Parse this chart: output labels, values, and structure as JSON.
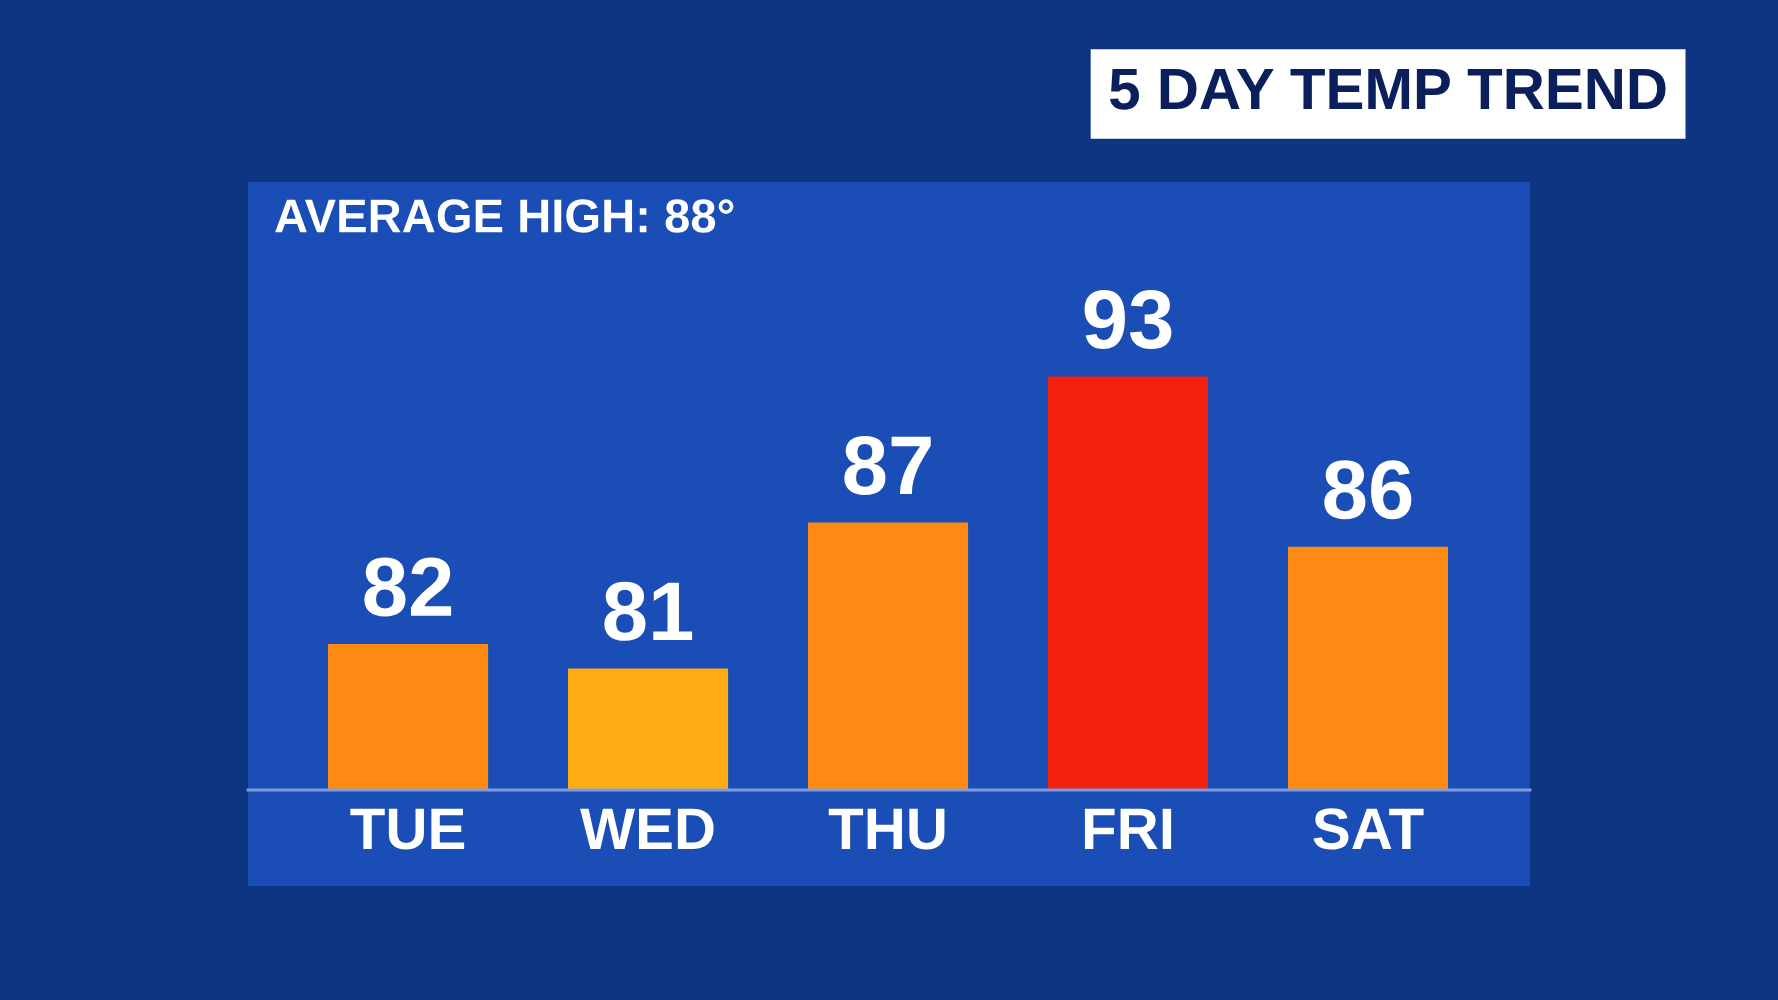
{
  "chart_data": {
    "type": "bar",
    "title": "5 DAY TEMP TREND",
    "annotations": [
      "AVERAGE HIGH: 88°"
    ],
    "categories": [
      "TUE",
      "WED",
      "THU",
      "FRI",
      "SAT"
    ],
    "values": [
      82,
      81,
      87,
      93,
      86
    ],
    "colors": [
      "#ff8a14",
      "#ffab12",
      "#ff8a14",
      "#f5210f",
      "#ff8a14"
    ],
    "ylim": [
      76,
      101
    ],
    "data_labels": true
  }
}
